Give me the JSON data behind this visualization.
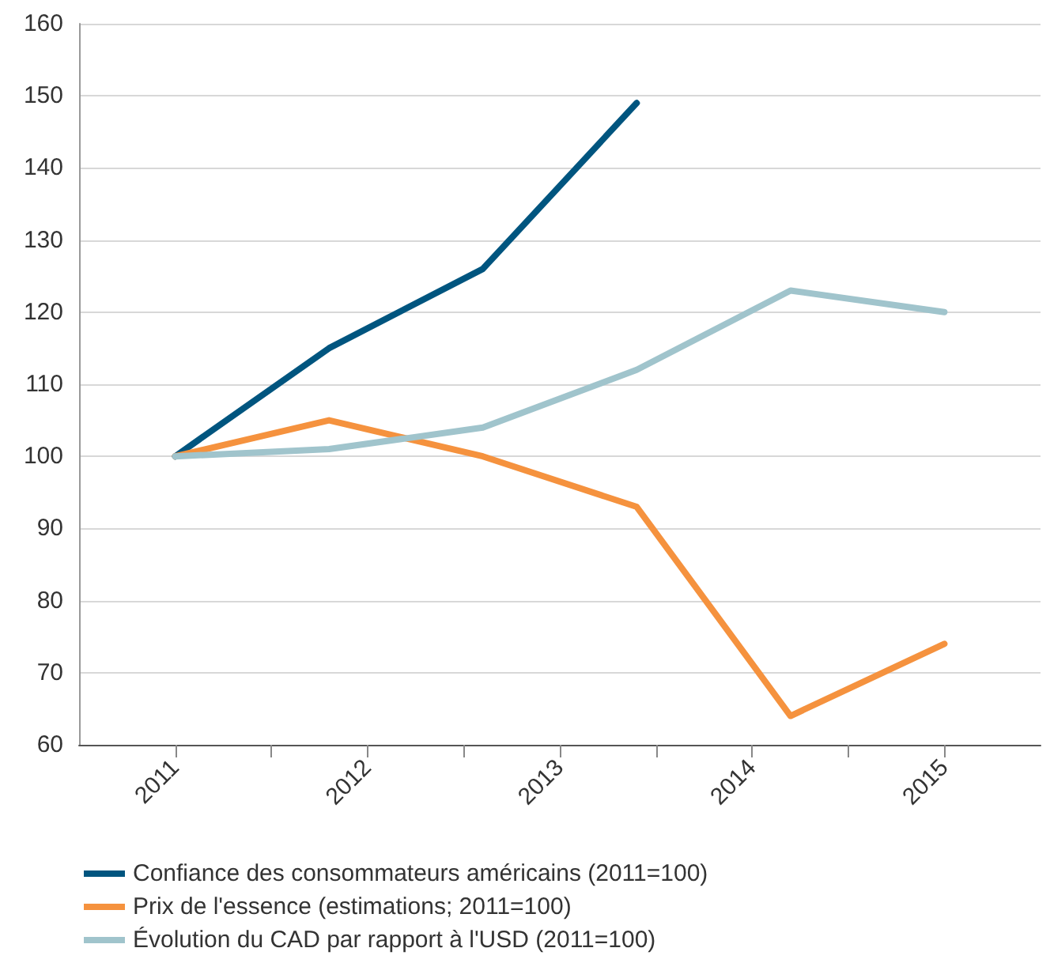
{
  "chart_data": {
    "type": "line",
    "x": [
      2011,
      2011.8,
      2012.6,
      2013.4,
      2014.2,
      2015
    ],
    "xlim": [
      2010.5,
      2015.5
    ],
    "xticks": [
      {
        "value": 2011,
        "label": "2011"
      },
      {
        "value": 2011.5,
        "label": null
      },
      {
        "value": 2012,
        "label": "2012"
      },
      {
        "value": 2012.5,
        "label": null
      },
      {
        "value": 2013,
        "label": "2013"
      },
      {
        "value": 2013.5,
        "label": null
      },
      {
        "value": 2014,
        "label": "2014"
      },
      {
        "value": 2014.5,
        "label": null
      },
      {
        "value": 2015,
        "label": "2015"
      }
    ],
    "ylim": [
      60,
      160
    ],
    "yticks": [
      60,
      70,
      80,
      90,
      100,
      110,
      120,
      130,
      140,
      150,
      160
    ],
    "grid": "y",
    "legend": "bottom",
    "marker": "none",
    "line_style": "solid",
    "series": [
      {
        "name": "Confiance des consommateurs américains (2011=100)",
        "color": "#00557f",
        "values": [
          100,
          115,
          126,
          149,
          null,
          null
        ]
      },
      {
        "name": "Prix de l'essence (estimations; 2011=100)",
        "color": "#f5923e",
        "values": [
          100,
          105,
          100,
          93,
          64,
          74
        ]
      },
      {
        "name": "Évolution du CAD par rapport à l'USD (2011=100)",
        "color": "#a0c4cc",
        "values": [
          100,
          101,
          104,
          112,
          123,
          120
        ]
      }
    ]
  }
}
